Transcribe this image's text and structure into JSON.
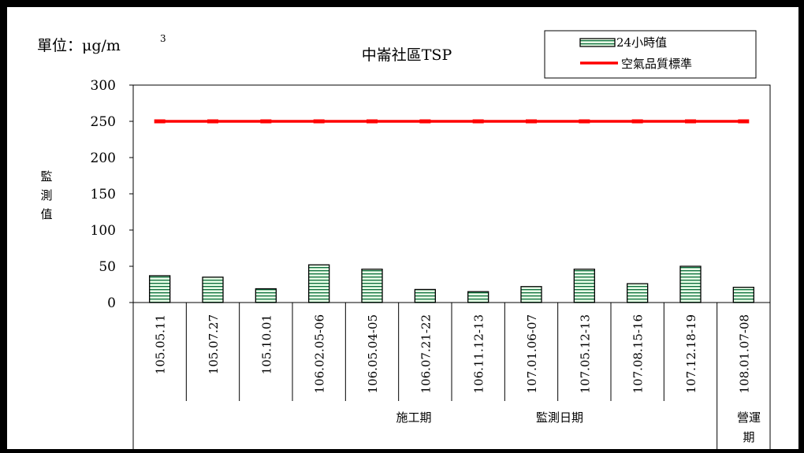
{
  "chart_data": {
    "type": "bar",
    "title": "中崙社區TSP",
    "unit": "單位：μg/m",
    "unit_sup": "3",
    "ylabel": "監測值",
    "xlabel": "監測日期",
    "ylim": [
      0,
      300
    ],
    "yticks": [
      "0",
      "50",
      "100",
      "150",
      "200",
      "250",
      "300"
    ],
    "categories": [
      "105.05.11",
      "105.07.27",
      "105.10.01",
      "106.02.05-06",
      "106.05.04-05",
      "106.07.21-22",
      "106.11.12-13",
      "107.01.06-07",
      "107.05.12-13",
      "107.08.15-16",
      "107.12.18-19",
      "108.01.07-08"
    ],
    "series": [
      {
        "name": "24小時值",
        "type": "bar",
        "values": [
          37,
          35,
          19,
          52,
          46,
          18,
          15,
          22,
          46,
          26,
          50,
          21
        ]
      },
      {
        "name": "空氣品質標準",
        "type": "line",
        "color": "#ff0000",
        "values": [
          250,
          250,
          250,
          250,
          250,
          250,
          250,
          250,
          250,
          250,
          250,
          250
        ]
      }
    ],
    "groups": [
      {
        "label": "施工期",
        "count": 11
      },
      {
        "label": "營運期",
        "count": 1
      }
    ],
    "legend_position": "top-right",
    "bar_fill": "#e0ffe0",
    "bar_stripe": "#006633"
  }
}
